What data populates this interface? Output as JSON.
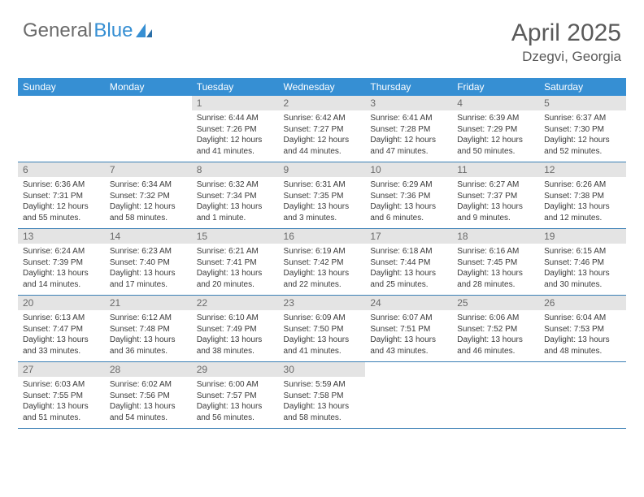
{
  "brand": {
    "word1": "General",
    "word2": "Blue"
  },
  "title": "April 2025",
  "location": "Dzegvi, Georgia",
  "colors": {
    "header_bar": "#368fd3",
    "daynum_bg": "#e4e4e4",
    "row_divider": "#3a7fb5",
    "text_primary": "#3a3a3a",
    "text_muted": "#6a6a6a",
    "brand_gray": "#6b6b6b",
    "brand_blue": "#368fd3",
    "background": "#ffffff"
  },
  "typography": {
    "title_fontsize": 30,
    "location_fontsize": 17,
    "dow_fontsize": 12,
    "daynum_fontsize": 12,
    "body_fontsize": 10
  },
  "days_of_week": [
    "Sunday",
    "Monday",
    "Tuesday",
    "Wednesday",
    "Thursday",
    "Friday",
    "Saturday"
  ],
  "weeks": [
    [
      {
        "n": "",
        "lines": [
          "",
          "",
          ""
        ]
      },
      {
        "n": "",
        "lines": [
          "",
          "",
          ""
        ]
      },
      {
        "n": "1",
        "lines": [
          "Sunrise: 6:44 AM",
          "Sunset: 7:26 PM",
          "Daylight: 12 hours and 41 minutes."
        ]
      },
      {
        "n": "2",
        "lines": [
          "Sunrise: 6:42 AM",
          "Sunset: 7:27 PM",
          "Daylight: 12 hours and 44 minutes."
        ]
      },
      {
        "n": "3",
        "lines": [
          "Sunrise: 6:41 AM",
          "Sunset: 7:28 PM",
          "Daylight: 12 hours and 47 minutes."
        ]
      },
      {
        "n": "4",
        "lines": [
          "Sunrise: 6:39 AM",
          "Sunset: 7:29 PM",
          "Daylight: 12 hours and 50 minutes."
        ]
      },
      {
        "n": "5",
        "lines": [
          "Sunrise: 6:37 AM",
          "Sunset: 7:30 PM",
          "Daylight: 12 hours and 52 minutes."
        ]
      }
    ],
    [
      {
        "n": "6",
        "lines": [
          "Sunrise: 6:36 AM",
          "Sunset: 7:31 PM",
          "Daylight: 12 hours and 55 minutes."
        ]
      },
      {
        "n": "7",
        "lines": [
          "Sunrise: 6:34 AM",
          "Sunset: 7:32 PM",
          "Daylight: 12 hours and 58 minutes."
        ]
      },
      {
        "n": "8",
        "lines": [
          "Sunrise: 6:32 AM",
          "Sunset: 7:34 PM",
          "Daylight: 13 hours and 1 minute."
        ]
      },
      {
        "n": "9",
        "lines": [
          "Sunrise: 6:31 AM",
          "Sunset: 7:35 PM",
          "Daylight: 13 hours and 3 minutes."
        ]
      },
      {
        "n": "10",
        "lines": [
          "Sunrise: 6:29 AM",
          "Sunset: 7:36 PM",
          "Daylight: 13 hours and 6 minutes."
        ]
      },
      {
        "n": "11",
        "lines": [
          "Sunrise: 6:27 AM",
          "Sunset: 7:37 PM",
          "Daylight: 13 hours and 9 minutes."
        ]
      },
      {
        "n": "12",
        "lines": [
          "Sunrise: 6:26 AM",
          "Sunset: 7:38 PM",
          "Daylight: 13 hours and 12 minutes."
        ]
      }
    ],
    [
      {
        "n": "13",
        "lines": [
          "Sunrise: 6:24 AM",
          "Sunset: 7:39 PM",
          "Daylight: 13 hours and 14 minutes."
        ]
      },
      {
        "n": "14",
        "lines": [
          "Sunrise: 6:23 AM",
          "Sunset: 7:40 PM",
          "Daylight: 13 hours and 17 minutes."
        ]
      },
      {
        "n": "15",
        "lines": [
          "Sunrise: 6:21 AM",
          "Sunset: 7:41 PM",
          "Daylight: 13 hours and 20 minutes."
        ]
      },
      {
        "n": "16",
        "lines": [
          "Sunrise: 6:19 AM",
          "Sunset: 7:42 PM",
          "Daylight: 13 hours and 22 minutes."
        ]
      },
      {
        "n": "17",
        "lines": [
          "Sunrise: 6:18 AM",
          "Sunset: 7:44 PM",
          "Daylight: 13 hours and 25 minutes."
        ]
      },
      {
        "n": "18",
        "lines": [
          "Sunrise: 6:16 AM",
          "Sunset: 7:45 PM",
          "Daylight: 13 hours and 28 minutes."
        ]
      },
      {
        "n": "19",
        "lines": [
          "Sunrise: 6:15 AM",
          "Sunset: 7:46 PM",
          "Daylight: 13 hours and 30 minutes."
        ]
      }
    ],
    [
      {
        "n": "20",
        "lines": [
          "Sunrise: 6:13 AM",
          "Sunset: 7:47 PM",
          "Daylight: 13 hours and 33 minutes."
        ]
      },
      {
        "n": "21",
        "lines": [
          "Sunrise: 6:12 AM",
          "Sunset: 7:48 PM",
          "Daylight: 13 hours and 36 minutes."
        ]
      },
      {
        "n": "22",
        "lines": [
          "Sunrise: 6:10 AM",
          "Sunset: 7:49 PM",
          "Daylight: 13 hours and 38 minutes."
        ]
      },
      {
        "n": "23",
        "lines": [
          "Sunrise: 6:09 AM",
          "Sunset: 7:50 PM",
          "Daylight: 13 hours and 41 minutes."
        ]
      },
      {
        "n": "24",
        "lines": [
          "Sunrise: 6:07 AM",
          "Sunset: 7:51 PM",
          "Daylight: 13 hours and 43 minutes."
        ]
      },
      {
        "n": "25",
        "lines": [
          "Sunrise: 6:06 AM",
          "Sunset: 7:52 PM",
          "Daylight: 13 hours and 46 minutes."
        ]
      },
      {
        "n": "26",
        "lines": [
          "Sunrise: 6:04 AM",
          "Sunset: 7:53 PM",
          "Daylight: 13 hours and 48 minutes."
        ]
      }
    ],
    [
      {
        "n": "27",
        "lines": [
          "Sunrise: 6:03 AM",
          "Sunset: 7:55 PM",
          "Daylight: 13 hours and 51 minutes."
        ]
      },
      {
        "n": "28",
        "lines": [
          "Sunrise: 6:02 AM",
          "Sunset: 7:56 PM",
          "Daylight: 13 hours and 54 minutes."
        ]
      },
      {
        "n": "29",
        "lines": [
          "Sunrise: 6:00 AM",
          "Sunset: 7:57 PM",
          "Daylight: 13 hours and 56 minutes."
        ]
      },
      {
        "n": "30",
        "lines": [
          "Sunrise: 5:59 AM",
          "Sunset: 7:58 PM",
          "Daylight: 13 hours and 58 minutes."
        ]
      },
      {
        "n": "",
        "lines": [
          "",
          "",
          ""
        ]
      },
      {
        "n": "",
        "lines": [
          "",
          "",
          ""
        ]
      },
      {
        "n": "",
        "lines": [
          "",
          "",
          ""
        ]
      }
    ]
  ]
}
